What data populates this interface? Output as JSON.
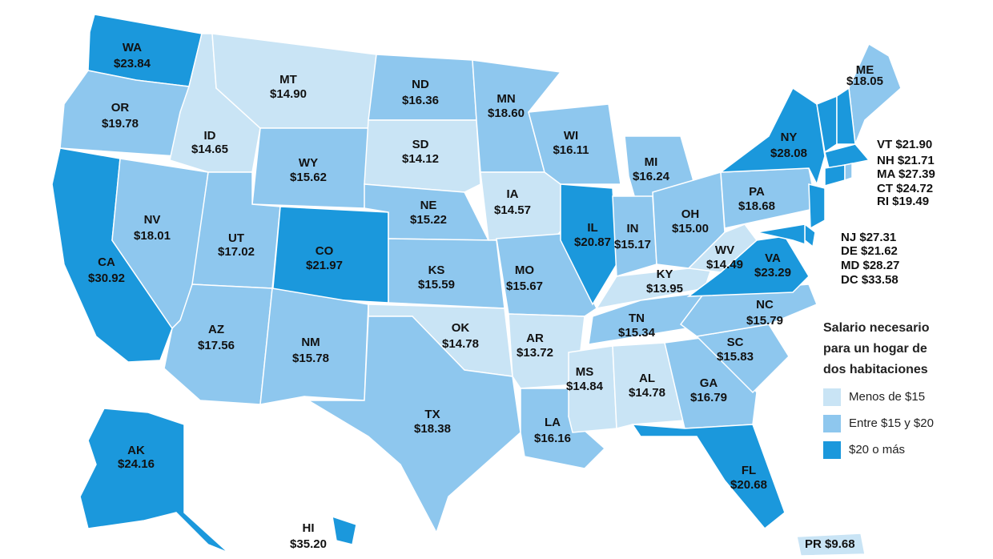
{
  "chart_data": {
    "type": "choropleth",
    "categories": [
      "WA",
      "OR",
      "CA",
      "NV",
      "ID",
      "MT",
      "WY",
      "UT",
      "CO",
      "AZ",
      "NM",
      "ND",
      "SD",
      "NE",
      "KS",
      "OK",
      "TX",
      "MN",
      "IA",
      "MO",
      "AR",
      "LA",
      "WI",
      "IL",
      "MI",
      "IN",
      "OH",
      "KY",
      "TN",
      "MS",
      "AL",
      "GA",
      "FL",
      "SC",
      "NC",
      "VA",
      "WV",
      "PA",
      "NY",
      "ME",
      "VT",
      "NH",
      "MA",
      "CT",
      "RI",
      "NJ",
      "DE",
      "MD",
      "DC",
      "AK",
      "HI",
      "PR"
    ],
    "values": [
      23.84,
      19.78,
      30.92,
      18.01,
      14.65,
      14.9,
      15.62,
      17.02,
      21.97,
      17.56,
      15.78,
      16.36,
      14.12,
      15.22,
      15.59,
      14.78,
      18.38,
      18.6,
      14.57,
      15.67,
      13.72,
      16.16,
      16.11,
      20.87,
      16.24,
      15.17,
      15.0,
      13.95,
      15.34,
      14.84,
      14.78,
      16.79,
      20.68,
      15.83,
      15.79,
      23.29,
      14.49,
      18.68,
      28.08,
      18.05,
      21.9,
      21.71,
      27.39,
      24.72,
      19.49,
      27.31,
      21.62,
      28.27,
      33.58,
      24.16,
      35.2,
      9.68
    ],
    "value_labels": [
      "$23.84",
      "$19.78",
      "$30.92",
      "$18.01",
      "$14.65",
      "$14.90",
      "$15.62",
      "$17.02",
      "$21.97",
      "$17.56",
      "$15.78",
      "$16.36",
      "$14.12",
      "$15.22",
      "$15.59",
      "$14.78",
      "$18.38",
      "$18.60",
      "$14.57",
      "$15.67",
      "$13.72",
      "$16.16",
      "$16.11",
      "$20.87",
      "$16.24",
      "$15.17",
      "$15.00",
      "$13.95",
      "$15.34",
      "$14.84",
      "$14.78",
      "$16.79",
      "$20.68",
      "$15.83",
      "$15.79",
      "$23.29",
      "$14.49",
      "$18.68",
      "$28.08",
      "$18.05",
      "$21.90",
      "$21.71",
      "$27.39",
      "$24.72",
      "$19.49",
      "$27.31",
      "$21.62",
      "$28.27",
      "$33.58",
      "$24.16",
      "$35.20",
      "$9.68"
    ],
    "legend": {
      "title": [
        "Salario necesario",
        "para un hogar de",
        "dos habitaciones"
      ],
      "items": [
        {
          "label": "Menos de $15",
          "color": "#c9e4f5",
          "min": null,
          "max": 15
        },
        {
          "label": "Entre $15 y $20",
          "color": "#8ec7ee",
          "min": 15,
          "max": 20
        },
        {
          "label": "$20 o más",
          "color": "#1b98dc",
          "min": 20,
          "max": null
        }
      ]
    }
  }
}
